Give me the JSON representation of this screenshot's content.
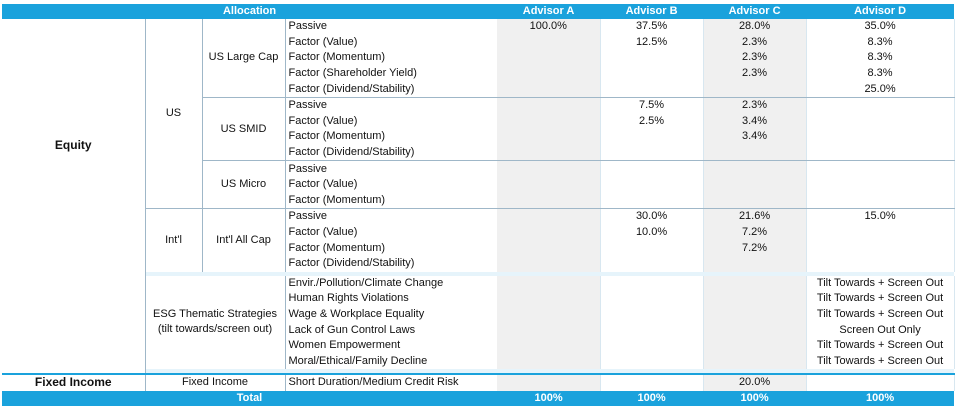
{
  "header": {
    "allocation": "Allocation",
    "advisors": [
      "Advisor A",
      "Advisor B",
      "Advisor C",
      "Advisor D"
    ]
  },
  "equity": {
    "label": "Equity",
    "us": {
      "label": "US",
      "large_cap": {
        "label": "US Large Cap",
        "rows": [
          {
            "name": "Passive",
            "a": "100.0%",
            "b": "37.5%",
            "c": "28.0%",
            "d": "35.0%"
          },
          {
            "name": "Factor (Value)",
            "a": "",
            "b": "12.5%",
            "c": "2.3%",
            "d": "8.3%"
          },
          {
            "name": "Factor (Momentum)",
            "a": "",
            "b": "",
            "c": "2.3%",
            "d": "8.3%"
          },
          {
            "name": "Factor (Shareholder Yield)",
            "a": "",
            "b": "",
            "c": "2.3%",
            "d": "8.3%"
          },
          {
            "name": "Factor (Dividend/Stability)",
            "a": "",
            "b": "",
            "c": "",
            "d": "25.0%"
          }
        ]
      },
      "smid": {
        "label": "US SMID",
        "rows": [
          {
            "name": "Passive",
            "a": "",
            "b": "7.5%",
            "c": "2.3%",
            "d": ""
          },
          {
            "name": "Factor (Value)",
            "a": "",
            "b": "2.5%",
            "c": "3.4%",
            "d": ""
          },
          {
            "name": "Factor (Momentum)",
            "a": "",
            "b": "",
            "c": "3.4%",
            "d": ""
          },
          {
            "name": "Factor (Dividend/Stability)",
            "a": "",
            "b": "",
            "c": "",
            "d": ""
          }
        ]
      },
      "micro": {
        "label": "US Micro",
        "rows": [
          {
            "name": "Passive",
            "a": "",
            "b": "",
            "c": "",
            "d": ""
          },
          {
            "name": "Factor (Value)",
            "a": "",
            "b": "",
            "c": "",
            "d": ""
          },
          {
            "name": "Factor (Momentum)",
            "a": "",
            "b": "",
            "c": "",
            "d": ""
          }
        ]
      }
    },
    "intl": {
      "label": "Int'l",
      "all_cap": {
        "label": "Int'l All Cap",
        "rows": [
          {
            "name": "Passive",
            "a": "",
            "b": "30.0%",
            "c": "21.6%",
            "d": "15.0%"
          },
          {
            "name": "Factor (Value)",
            "a": "",
            "b": "10.0%",
            "c": "7.2%",
            "d": ""
          },
          {
            "name": "Factor (Momentum)",
            "a": "",
            "b": "",
            "c": "7.2%",
            "d": ""
          },
          {
            "name": "Factor (Dividend/Stability)",
            "a": "",
            "b": "",
            "c": "",
            "d": ""
          }
        ]
      }
    },
    "esg": {
      "label_line1": "ESG Thematic Strategies",
      "label_line2": "(tilt towards/screen out)",
      "rows": [
        {
          "name": "Envir./Pollution/Climate Change",
          "a": "",
          "b": "",
          "c": "",
          "d": "Tilt Towards + Screen Out"
        },
        {
          "name": "Human Rights Violations",
          "a": "",
          "b": "",
          "c": "",
          "d": "Tilt Towards + Screen Out"
        },
        {
          "name": "Wage & Workplace Equality",
          "a": "",
          "b": "",
          "c": "",
          "d": "Tilt Towards + Screen Out"
        },
        {
          "name": "Lack of Gun Control Laws",
          "a": "",
          "b": "",
          "c": "",
          "d": "Screen Out Only"
        },
        {
          "name": "Women Empowerment",
          "a": "",
          "b": "",
          "c": "",
          "d": "Tilt Towards + Screen Out"
        },
        {
          "name": "Moral/Ethical/Family Decline",
          "a": "",
          "b": "",
          "c": "",
          "d": "Tilt Towards + Screen Out"
        }
      ]
    }
  },
  "fixed_income": {
    "label": "Fixed Income",
    "sub_label": "Fixed Income",
    "row": {
      "name": "Short Duration/Medium Credit Risk",
      "a": "",
      "b": "",
      "c": "20.0%",
      "d": ""
    }
  },
  "total": {
    "label": "Total",
    "a": "100%",
    "b": "100%",
    "c": "100%",
    "d": "100%"
  }
}
